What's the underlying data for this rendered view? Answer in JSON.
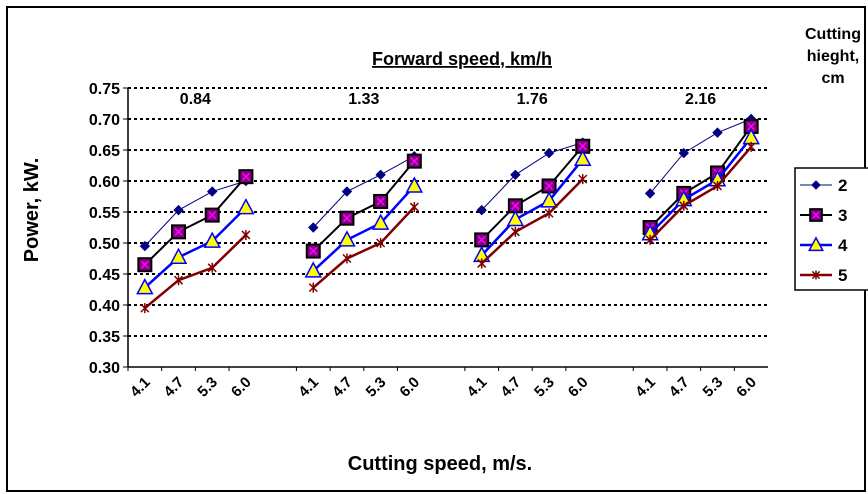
{
  "chart_data": {
    "type": "line",
    "title": "Forward speed, km/h",
    "xlabel": "Cutting speed, m/s.",
    "ylabel": "Power, kW.",
    "ylim": [
      0.3,
      0.75
    ],
    "yticks": [
      "0.30",
      "0.35",
      "0.40",
      "0.45",
      "0.50",
      "0.55",
      "0.60",
      "0.65",
      "0.70",
      "0.75"
    ],
    "grid": "horizontal-dotted",
    "legend_title": "Cutting hieght, cm",
    "legend_title_lines": [
      "Cutting",
      "hieght,",
      "cm"
    ],
    "legend_position": "right",
    "group_labels": [
      "0.84",
      "1.33",
      "1.76",
      "2.16"
    ],
    "categories": [
      "4.1",
      "4.7",
      "5.3",
      "6.0"
    ],
    "series": [
      {
        "name": "2",
        "color": "#000080",
        "marker": "diamond",
        "values": [
          [
            0.495,
            0.553,
            0.583,
            0.6
          ],
          [
            0.525,
            0.583,
            0.61,
            0.64
          ],
          [
            0.553,
            0.61,
            0.645,
            0.662
          ],
          [
            0.58,
            0.645,
            0.678,
            0.7
          ]
        ]
      },
      {
        "name": "3",
        "color": "#000000",
        "marker": "square-x",
        "values": [
          [
            0.465,
            0.518,
            0.545,
            0.607
          ],
          [
            0.487,
            0.54,
            0.567,
            0.632
          ],
          [
            0.505,
            0.56,
            0.592,
            0.656
          ],
          [
            0.525,
            0.58,
            0.613,
            0.688
          ]
        ]
      },
      {
        "name": "4",
        "color": "#0000ff",
        "marker": "triangle",
        "values": [
          [
            0.428,
            0.477,
            0.503,
            0.557
          ],
          [
            0.455,
            0.505,
            0.532,
            0.592
          ],
          [
            0.48,
            0.538,
            0.568,
            0.635
          ],
          [
            0.515,
            0.57,
            0.602,
            0.67
          ]
        ]
      },
      {
        "name": "5",
        "color": "#800000",
        "marker": "star",
        "values": [
          [
            0.395,
            0.44,
            0.46,
            0.513
          ],
          [
            0.428,
            0.475,
            0.5,
            0.558
          ],
          [
            0.467,
            0.518,
            0.548,
            0.603
          ],
          [
            0.505,
            0.56,
            0.592,
            0.655
          ]
        ]
      }
    ]
  }
}
